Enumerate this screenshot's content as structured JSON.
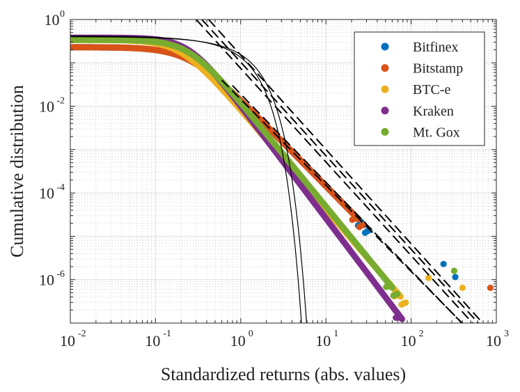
{
  "chart_data": {
    "type": "scatter",
    "title": "",
    "xlabel": "Standardized returns (abs. values)",
    "ylabel": "Cumulative distribution",
    "xscale": "log",
    "yscale": "log",
    "xlim": [
      0.01,
      1000
    ],
    "ylim": [
      1e-07,
      1
    ],
    "grid": true,
    "legend_position": "top-right",
    "x_tick_labels": [
      {
        "value": 0.01,
        "base": "10",
        "exp": "-2"
      },
      {
        "value": 0.1,
        "base": "10",
        "exp": "-1"
      },
      {
        "value": 1,
        "base": "10",
        "exp": "0"
      },
      {
        "value": 10,
        "base": "10",
        "exp": "1"
      },
      {
        "value": 100,
        "base": "10",
        "exp": "2"
      },
      {
        "value": 1000,
        "base": "10",
        "exp": "3"
      }
    ],
    "y_tick_labels": [
      {
        "value": 1e-06,
        "base": "10",
        "exp": "-6"
      },
      {
        "value": 0.0001,
        "base": "10",
        "exp": "-4"
      },
      {
        "value": 0.01,
        "base": "10",
        "exp": "-2"
      },
      {
        "value": 1,
        "base": "10",
        "exp": "0"
      }
    ],
    "series": [
      {
        "name": "Bitfinex",
        "color": "#0072bd",
        "plateau": 0.23,
        "knee": 0.25,
        "alpha": 2.0,
        "xmax": 28,
        "outliers": [
          {
            "x": 240,
            "y": 2.3e-06
          },
          {
            "x": 330,
            "y": 1.15e-06
          }
        ]
      },
      {
        "name": "Bitstamp",
        "color": "#d95319",
        "plateau": 0.23,
        "knee": 0.25,
        "alpha": 2.0,
        "xmax": 24,
        "outliers": [
          {
            "x": 850,
            "y": 6.5e-07
          }
        ]
      },
      {
        "name": "BTC-e",
        "color": "#edb120",
        "plateau": 0.34,
        "knee": 0.2,
        "alpha": 2.3,
        "xmax": 75,
        "outliers": [
          {
            "x": 160,
            "y": 1.1e-06
          },
          {
            "x": 400,
            "y": 6.5e-07
          }
        ]
      },
      {
        "name": "Kraken",
        "color": "#7e2f8e",
        "plateau": 0.38,
        "knee": 0.25,
        "alpha": 2.6,
        "xmax": 78,
        "outliers": []
      },
      {
        "name": "Mt. Gox",
        "color": "#77ac30",
        "plateau": 0.34,
        "knee": 0.25,
        "alpha": 2.4,
        "xmax": 60,
        "outliers": [
          {
            "x": 320,
            "y": 1.6e-06
          }
        ]
      }
    ],
    "fit_lines": [
      {
        "style": "dashed",
        "x1": 0.3,
        "y1": 1.0,
        "x2": 1000,
        "y2": 2.5e-08
      },
      {
        "style": "dashed",
        "x1": 0.35,
        "y1": 1.0,
        "x2": 1000,
        "y2": 3.5e-08
      },
      {
        "style": "dashed",
        "x1": 0.42,
        "y1": 1.0,
        "x2": 1000,
        "y2": 4.5e-08
      },
      {
        "style": "dashed",
        "x1": 0.6,
        "y1": 0.04,
        "x2": 1000,
        "y2": 1.6e-08
      },
      {
        "style": "dashed",
        "x1": 0.8,
        "y1": 0.03,
        "x2": 1000,
        "y2": 1.5e-08
      }
    ],
    "gaussian_line": {
      "style": "solid",
      "label": ""
    }
  }
}
